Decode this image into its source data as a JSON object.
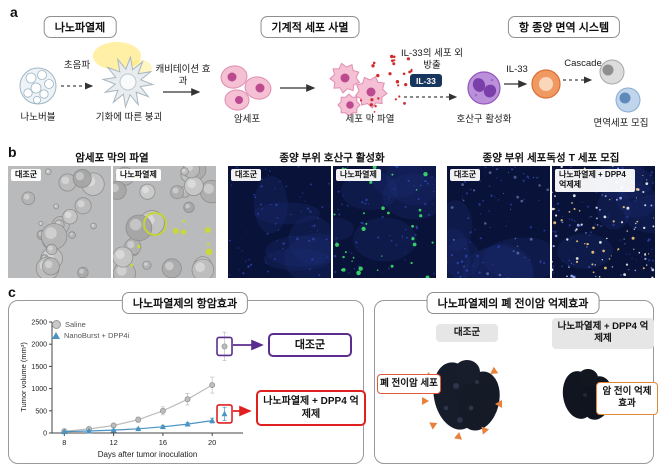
{
  "accent_colors": {
    "control_purple": "#5b2d8e",
    "treated_red": "#e02020",
    "arrowhead_orange": "#e8813c",
    "il33_badge_navy": "#17365d",
    "saline_gray": "#bdbdbd",
    "nanoburst_blue": "#4a93c3"
  },
  "panels": {
    "a": {
      "label": "a",
      "titles": [
        "나노파열제",
        "기계적 세포 사멸",
        "항 종양 면역 시스템"
      ],
      "steps": {
        "nanobubble": "나노버블",
        "ultrasound": "초음파",
        "collapse": "기화에 따른 붕괴",
        "cavitation": "캐비테이션 효과",
        "cancer_cells": "암세포",
        "membrane_rupture": "세포 막 파열",
        "il33_release": "IL-33의 세포 외 방출",
        "il33_badge": "IL-33",
        "eosinophil_activation": "호산구 활성화",
        "il33_arrow_label": "IL-33",
        "cascade": "Cascade",
        "immune_cell_recruitment": "면역세포 모집"
      }
    },
    "b": {
      "label": "b",
      "groups": [
        {
          "title": "암세포 막의 파열",
          "left_label": "대조군",
          "right_label": "나노파열제"
        },
        {
          "title": "종양 부위 호산구 활성화",
          "left_label": "대조군",
          "right_label": "나노파열제"
        },
        {
          "title": "종양 부위 세포독성 T 세포 모집",
          "left_label": "대조군",
          "right_label": "나노파열제 + DPP4 억제제"
        }
      ]
    },
    "c": {
      "label": "c",
      "left_title": "나노파열제의 항암효과",
      "callouts": {
        "control": "대조군",
        "treated": "나노파열제 + DPP4 억제제"
      },
      "right_title": "나노파열제의 폐 전이암 억제효과",
      "right_labels": {
        "control": "대조군",
        "treated": "나노파열제 + DPP4 억제제"
      },
      "annotations": {
        "metastasis": "폐 전이암 세포",
        "suppression": "암 전이 억제효과"
      }
    }
  },
  "chart_data": {
    "type": "line",
    "title": "나노파열제의 항암효과",
    "xlabel": "Days after tumor inoculation",
    "ylabel": "Tumor volume (mm³)",
    "xticks": [
      8,
      12,
      16,
      20
    ],
    "yticks": [
      0,
      500,
      1000,
      1500,
      2000,
      2500
    ],
    "xlim": [
      7,
      22.5
    ],
    "ylim": [
      0,
      2500
    ],
    "grid": false,
    "legend_position": "upper-left",
    "series": [
      {
        "name": "Saline",
        "marker": "circle",
        "color": "#bdbdbd",
        "x": [
          8,
          10,
          12,
          14,
          16,
          18,
          20,
          21
        ],
        "y": [
          40,
          90,
          170,
          300,
          500,
          760,
          1080,
          1950
        ],
        "yerr": [
          15,
          25,
          40,
          60,
          90,
          130,
          180,
          320
        ],
        "highlight_box_color": "#5b2d8e",
        "callout": "대조군"
      },
      {
        "name": "NanoBurst + DPP4i",
        "marker": "triangle",
        "color": "#4a93c3",
        "x": [
          8,
          10,
          12,
          14,
          16,
          18,
          20,
          21
        ],
        "y": [
          30,
          45,
          65,
          95,
          140,
          200,
          280,
          430
        ],
        "yerr": [
          10,
          12,
          15,
          20,
          28,
          40,
          55,
          150
        ],
        "highlight_box_color": "#e02020",
        "callout": "나노파열제 + DPP4 억제제"
      }
    ]
  }
}
